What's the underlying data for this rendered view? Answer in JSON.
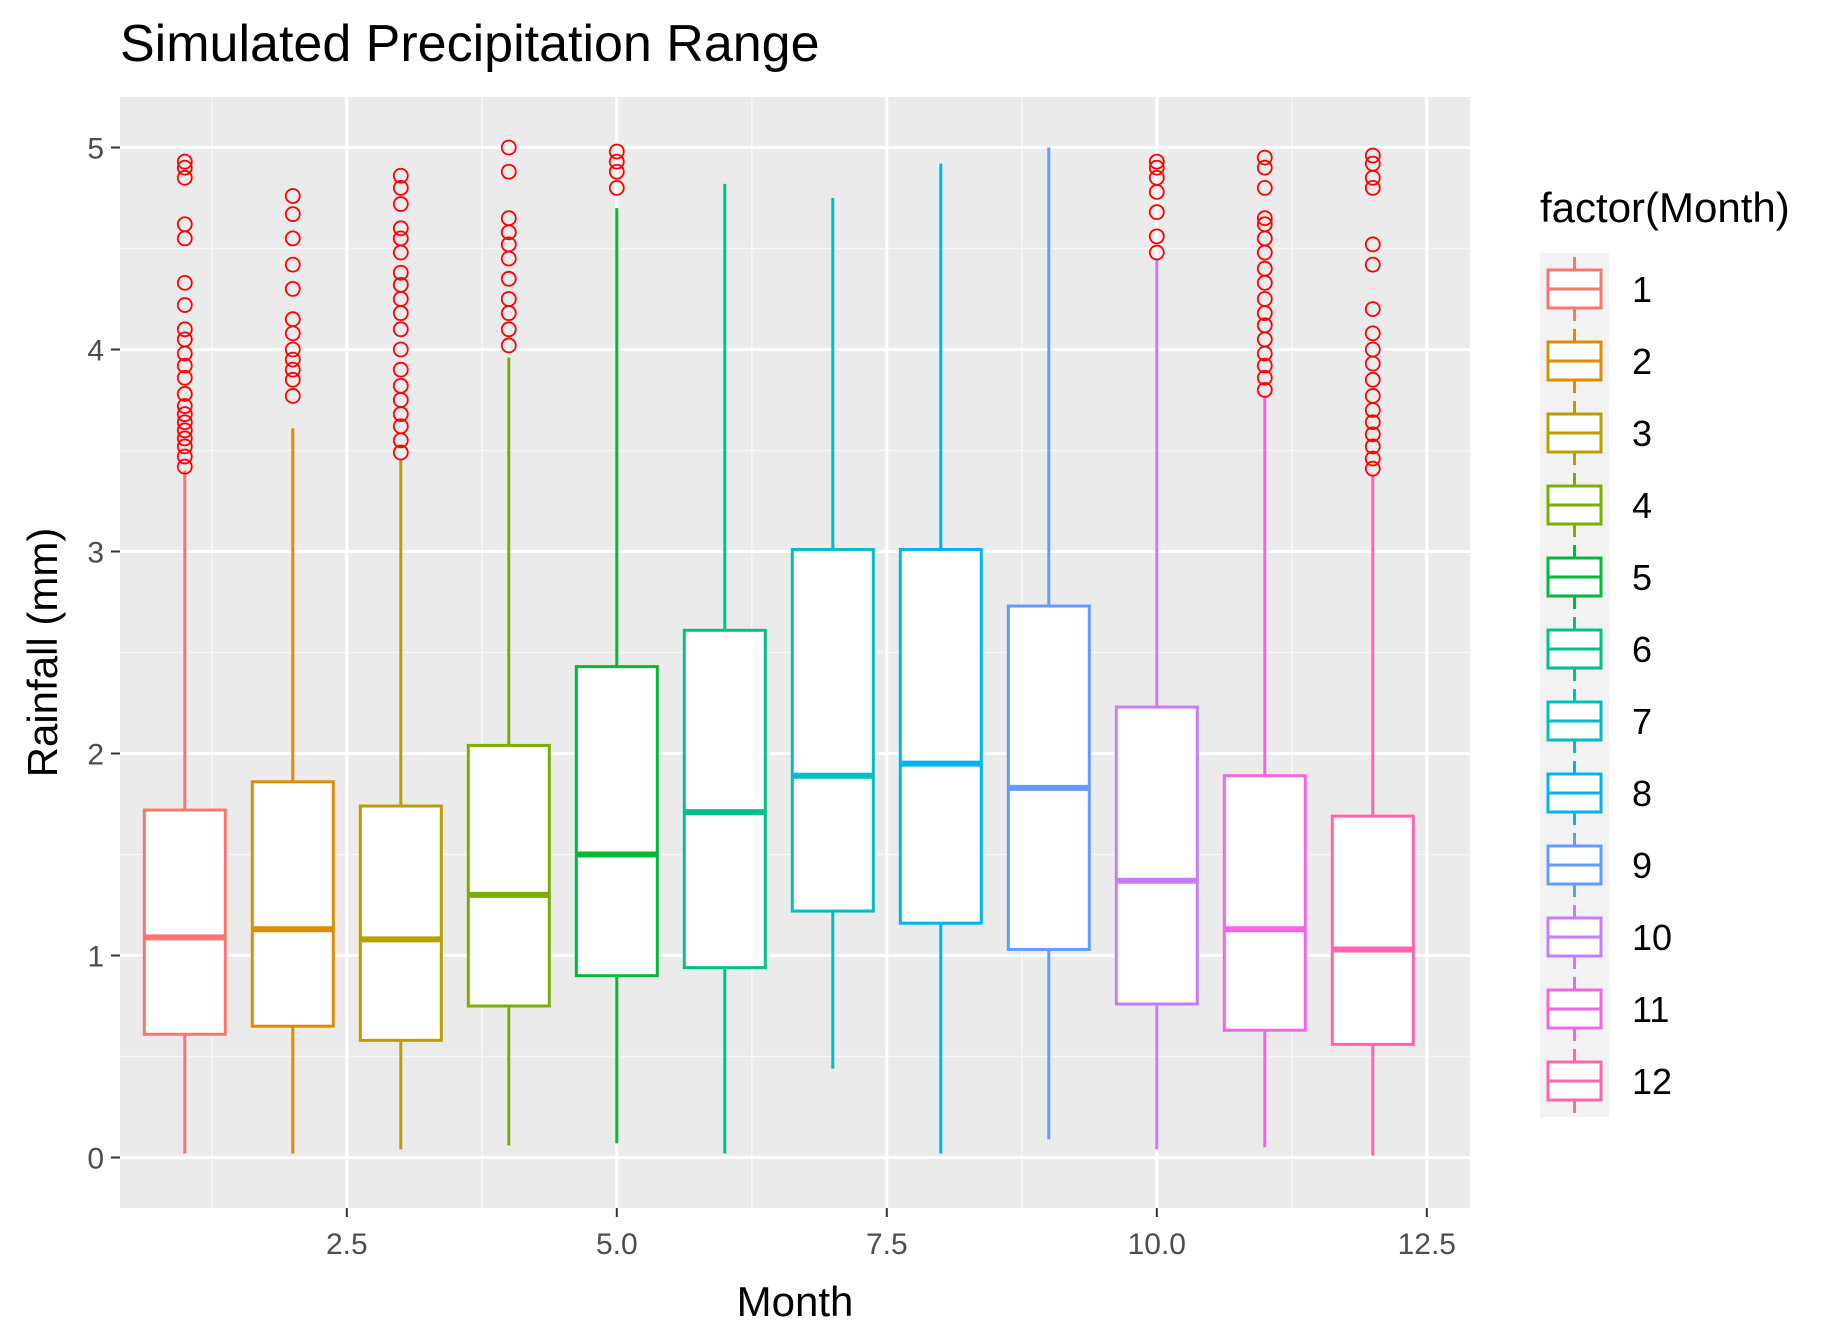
{
  "title": "Simulated Precipitation Range",
  "chart_data": {
    "type": "boxplot",
    "title": "Simulated Precipitation Range",
    "xlabel": "Month",
    "ylabel": "Rainfall (mm)",
    "xlim": [
      0.4,
      12.9
    ],
    "ylim": [
      -0.25,
      5.25
    ],
    "x_ticks": [
      "2.5",
      "5.0",
      "7.5",
      "10.0",
      "12.5"
    ],
    "x_tick_values": [
      2.5,
      5.0,
      7.5,
      10.0,
      12.5
    ],
    "y_ticks": [
      "0",
      "1",
      "2",
      "3",
      "4",
      "5"
    ],
    "y_tick_values": [
      0,
      1,
      2,
      3,
      4,
      5
    ],
    "grid": true,
    "legend": {
      "title": "factor(Month)",
      "placement": "right"
    },
    "series": [
      {
        "name": "1",
        "x": 1,
        "color": "#F8766D",
        "whisker_low": 0.02,
        "q1": 0.61,
        "median": 1.09,
        "q3": 1.72,
        "whisker_high": 3.4,
        "outliers": [
          3.42,
          3.47,
          3.52,
          3.56,
          3.6,
          3.64,
          3.68,
          3.72,
          3.78,
          3.86,
          3.92,
          3.98,
          4.05,
          4.1,
          4.22,
          4.33,
          4.55,
          4.62,
          4.85,
          4.9,
          4.93
        ]
      },
      {
        "name": "2",
        "x": 2,
        "color": "#DE8C00",
        "whisker_low": 0.02,
        "q1": 0.65,
        "median": 1.13,
        "q3": 1.86,
        "whisker_high": 3.61,
        "outliers": [
          3.77,
          3.85,
          3.9,
          3.95,
          4.0,
          4.08,
          4.15,
          4.3,
          4.42,
          4.55,
          4.67,
          4.76
        ]
      },
      {
        "name": "3",
        "x": 3,
        "color": "#B79F00",
        "whisker_low": 0.04,
        "q1": 0.58,
        "median": 1.08,
        "q3": 1.74,
        "whisker_high": 3.46,
        "outliers": [
          3.49,
          3.55,
          3.62,
          3.68,
          3.75,
          3.82,
          3.9,
          4.0,
          4.1,
          4.18,
          4.25,
          4.32,
          4.38,
          4.48,
          4.55,
          4.6,
          4.72,
          4.8,
          4.86
        ]
      },
      {
        "name": "4",
        "x": 4,
        "color": "#7CAE00",
        "whisker_low": 0.06,
        "q1": 0.75,
        "median": 1.3,
        "q3": 2.04,
        "whisker_high": 3.96,
        "outliers": [
          4.02,
          4.1,
          4.18,
          4.25,
          4.35,
          4.45,
          4.52,
          4.58,
          4.65,
          4.88,
          5.0
        ]
      },
      {
        "name": "5",
        "x": 5,
        "color": "#00BA38",
        "whisker_low": 0.07,
        "q1": 0.9,
        "median": 1.5,
        "q3": 2.43,
        "whisker_high": 4.7,
        "outliers": [
          4.8,
          4.88,
          4.93,
          4.98
        ]
      },
      {
        "name": "6",
        "x": 6,
        "color": "#00C08B",
        "whisker_low": 0.02,
        "q1": 0.94,
        "median": 1.71,
        "q3": 2.61,
        "whisker_high": 4.82,
        "outliers": []
      },
      {
        "name": "7",
        "x": 7,
        "color": "#00BFC4",
        "whisker_low": 0.44,
        "q1": 1.22,
        "median": 1.89,
        "q3": 3.01,
        "whisker_high": 4.75,
        "outliers": []
      },
      {
        "name": "8",
        "x": 8,
        "color": "#00B4F0",
        "whisker_low": 0.02,
        "q1": 1.16,
        "median": 1.95,
        "q3": 3.01,
        "whisker_high": 4.92,
        "outliers": []
      },
      {
        "name": "9",
        "x": 9,
        "color": "#619CFF",
        "whisker_low": 0.09,
        "q1": 1.03,
        "median": 1.83,
        "q3": 2.73,
        "whisker_high": 5.0,
        "outliers": []
      },
      {
        "name": "10",
        "x": 10,
        "color": "#C77CFF",
        "whisker_low": 0.04,
        "q1": 0.76,
        "median": 1.37,
        "q3": 2.23,
        "whisker_high": 4.45,
        "outliers": [
          4.48,
          4.56,
          4.68,
          4.78,
          4.85,
          4.9,
          4.93
        ]
      },
      {
        "name": "11",
        "x": 11,
        "color": "#F564E3",
        "whisker_low": 0.05,
        "q1": 0.63,
        "median": 1.13,
        "q3": 1.89,
        "whisker_high": 3.77,
        "outliers": [
          3.8,
          3.86,
          3.92,
          3.98,
          4.05,
          4.12,
          4.18,
          4.25,
          4.33,
          4.4,
          4.48,
          4.55,
          4.62,
          4.65,
          4.8,
          4.9,
          4.95
        ]
      },
      {
        "name": "12",
        "x": 12,
        "color": "#FF64B0",
        "whisker_low": 0.01,
        "q1": 0.56,
        "median": 1.03,
        "q3": 1.69,
        "whisker_high": 3.38,
        "outliers": [
          3.41,
          3.46,
          3.52,
          3.58,
          3.64,
          3.7,
          3.77,
          3.85,
          3.93,
          4.0,
          4.08,
          4.2,
          4.42,
          4.52,
          4.8,
          4.85,
          4.92,
          4.96
        ]
      }
    ]
  }
}
